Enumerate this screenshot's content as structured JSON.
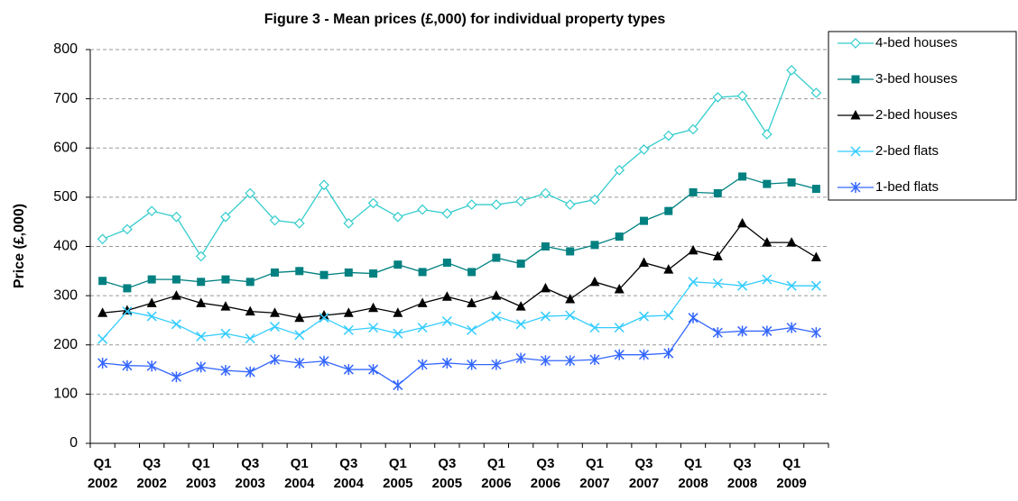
{
  "chart_data": {
    "type": "line",
    "title": "Figure 3 - Mean prices (£,000) for individual property types",
    "y_label": "Price (£,000)",
    "categories": [
      "Q1 2002",
      null,
      "Q3 2002",
      null,
      "Q1 2003",
      null,
      "Q3 2003",
      null,
      "Q1 2004",
      null,
      "Q3 2004",
      null,
      "Q1 2005",
      null,
      "Q3 2005",
      null,
      "Q1 2006",
      null,
      "Q3 2006",
      null,
      "Q1 2007",
      null,
      "Q3 2007",
      null,
      "Q1 2008",
      null,
      "Q3 2008",
      null,
      "Q1 2009",
      null
    ],
    "ylim": [
      0,
      800
    ],
    "yticks": [
      0,
      100,
      200,
      300,
      400,
      500,
      600,
      700,
      800
    ],
    "grid": true,
    "legend": "right",
    "series": [
      {
        "name": "4-bed houses",
        "color": "#33cccc",
        "marker": "diamond",
        "values": [
          415,
          435,
          472,
          460,
          380,
          460,
          508,
          453,
          447,
          525,
          447,
          488,
          460,
          475,
          467,
          485,
          485,
          492,
          508,
          485,
          495,
          555,
          597,
          625,
          638,
          703,
          706,
          628,
          758,
          712
        ]
      },
      {
        "name": "3-bed houses",
        "color": "#008080",
        "marker": "square",
        "values": [
          330,
          315,
          333,
          333,
          328,
          333,
          328,
          347,
          350,
          342,
          347,
          345,
          363,
          348,
          367,
          348,
          377,
          365,
          400,
          390,
          403,
          420,
          452,
          472,
          510,
          508,
          542,
          527,
          530,
          517
        ]
      },
      {
        "name": "2-bed houses",
        "color": "#000000",
        "marker": "triangle",
        "values": [
          265,
          270,
          285,
          300,
          285,
          278,
          268,
          265,
          255,
          260,
          265,
          275,
          265,
          285,
          298,
          285,
          300,
          278,
          315,
          293,
          328,
          313,
          367,
          353,
          392,
          380,
          447,
          408,
          408,
          378
        ]
      },
      {
        "name": "2-bed flats",
        "color": "#33ccff",
        "marker": "x",
        "values": [
          212,
          268,
          258,
          242,
          217,
          223,
          213,
          237,
          220,
          255,
          230,
          235,
          223,
          235,
          248,
          230,
          258,
          242,
          258,
          260,
          235,
          235,
          258,
          260,
          328,
          325,
          320,
          333,
          320,
          320
        ]
      },
      {
        "name": "1-bed flats",
        "color": "#3366ff",
        "marker": "star",
        "values": [
          163,
          158,
          157,
          135,
          155,
          148,
          145,
          170,
          163,
          167,
          150,
          150,
          118,
          160,
          163,
          160,
          160,
          173,
          168,
          168,
          170,
          180,
          180,
          183,
          255,
          225,
          228,
          228,
          235,
          225
        ]
      }
    ]
  }
}
